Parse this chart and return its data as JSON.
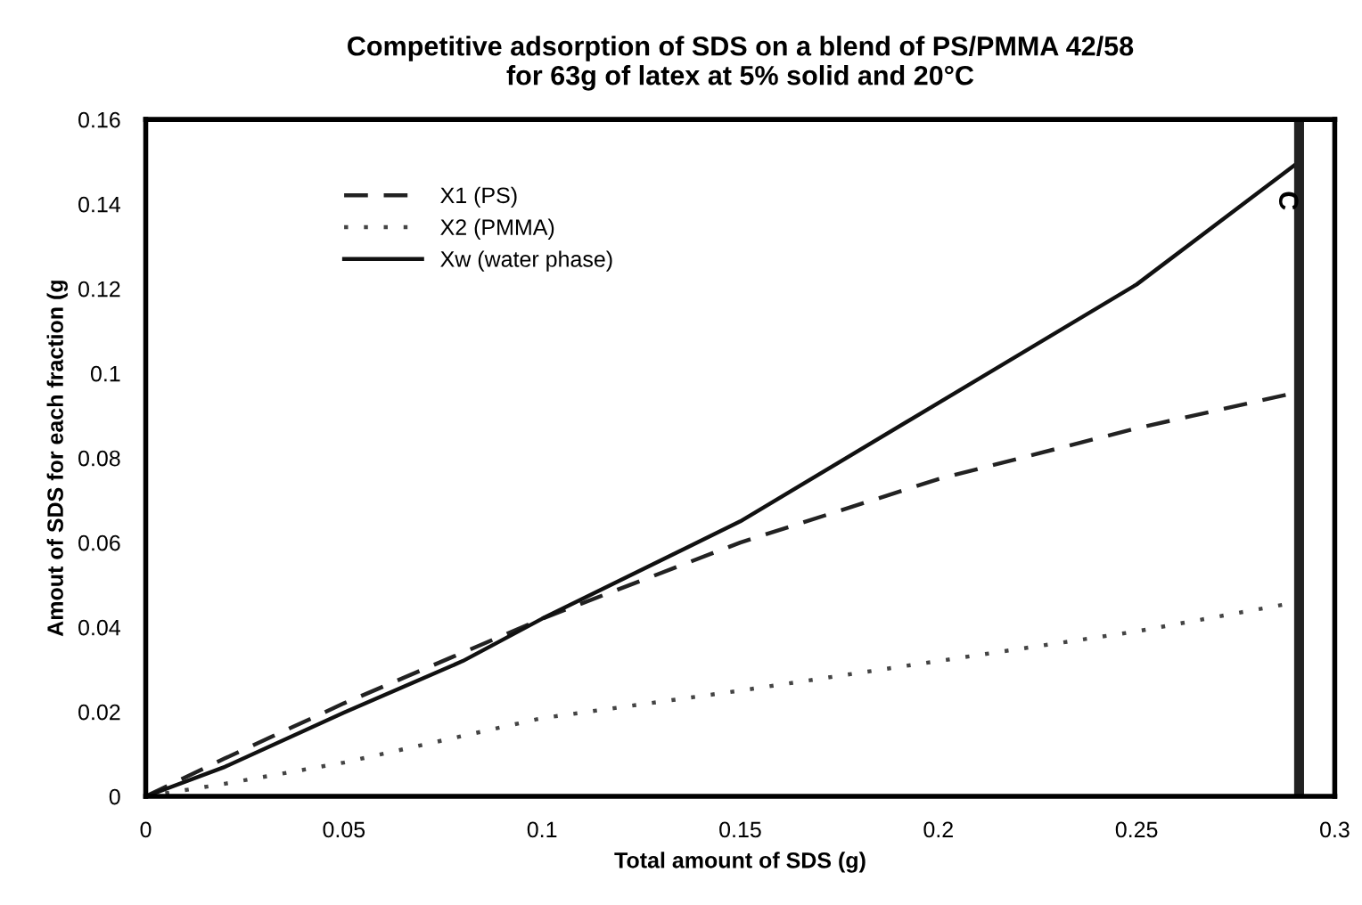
{
  "chart_data": {
    "type": "line",
    "title": "Competitive adsorption of SDS on a blend of PS/PMMA 42/58\nfor 63g of latex at 5% solid and 20°C",
    "xlabel": "Total amount of SDS (g)",
    "ylabel": "Amout of SDS for each fraction (g",
    "series": [
      {
        "name": "X1 (PS)",
        "color": "#222222",
        "line_style": "dashed",
        "x": [
          0,
          0.02,
          0.05,
          0.08,
          0.1,
          0.15,
          0.2,
          0.25,
          0.291
        ],
        "values": [
          0,
          0.009,
          0.022,
          0.034,
          0.042,
          0.06,
          0.075,
          0.087,
          0.0956
        ]
      },
      {
        "name": "X2 (PMMA)",
        "color": "#444444",
        "line_style": "dotted",
        "x": [
          0,
          0.02,
          0.05,
          0.1,
          0.15,
          0.2,
          0.25,
          0.291
        ],
        "values": [
          0,
          0.003,
          0.008,
          0.0185,
          0.025,
          0.032,
          0.039,
          0.046
        ]
      },
      {
        "name": "Xw (water phase)",
        "color": "#111111",
        "line_style": "solid",
        "x": [
          0,
          0.02,
          0.05,
          0.08,
          0.1,
          0.15,
          0.2,
          0.25,
          0.291
        ],
        "values": [
          0,
          0.007,
          0.0198,
          0.032,
          0.042,
          0.065,
          0.093,
          0.121,
          0.15
        ]
      }
    ],
    "xlim": [
      0,
      0.3
    ],
    "ylim": [
      0,
      0.16
    ],
    "xticks": [
      0,
      0.05,
      0.1,
      0.15,
      0.2,
      0.25,
      0.3
    ],
    "yticks": [
      0,
      0.02,
      0.04,
      0.06,
      0.08,
      0.1,
      0.12,
      0.14,
      0.16
    ],
    "ref_lines": [
      {
        "axis": "x",
        "value": 0.291,
        "label": "C",
        "color": "#222222"
      }
    ],
    "grid": false,
    "legend": "top left",
    "marker": "none"
  }
}
